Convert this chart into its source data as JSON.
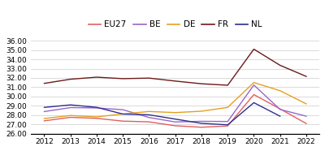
{
  "years": [
    2012,
    2013,
    2014,
    2015,
    2016,
    2017,
    2018,
    2019,
    2020,
    2021,
    2022
  ],
  "series": {
    "EU27": [
      27.37,
      27.75,
      27.64,
      27.34,
      27.26,
      26.84,
      26.68,
      26.82,
      30.2,
      28.66,
      27.08
    ],
    "BE": [
      28.37,
      28.8,
      28.76,
      28.57,
      27.73,
      27.25,
      27.32,
      27.3,
      31.23,
      28.6,
      27.87
    ],
    "DE": [
      27.62,
      27.95,
      27.8,
      28.11,
      28.38,
      28.26,
      28.41,
      28.82,
      31.5,
      30.62,
      29.2
    ],
    "FR": [
      31.41,
      31.86,
      32.08,
      31.92,
      31.98,
      31.66,
      31.37,
      31.21,
      35.1,
      33.36,
      32.16
    ],
    "NL": [
      28.82,
      29.09,
      28.83,
      28.1,
      28.02,
      27.56,
      27.1,
      26.94,
      29.33,
      27.87,
      null
    ]
  },
  "colors": {
    "EU27": "#e06060",
    "BE": "#9966cc",
    "DE": "#e6a020",
    "FR": "#6b1a1a",
    "NL": "#2e2e8e"
  },
  "ylim": [
    26.0,
    36.0
  ],
  "yticks": [
    26.0,
    27.0,
    28.0,
    29.0,
    30.0,
    31.0,
    32.0,
    33.0,
    34.0,
    35.0,
    36.0
  ],
  "legend_order": [
    "EU27",
    "BE",
    "DE",
    "FR",
    "NL"
  ],
  "background_color": "#ffffff",
  "grid_color": "#cccccc",
  "tick_fontsize": 6.5,
  "legend_fontsize": 7.5
}
